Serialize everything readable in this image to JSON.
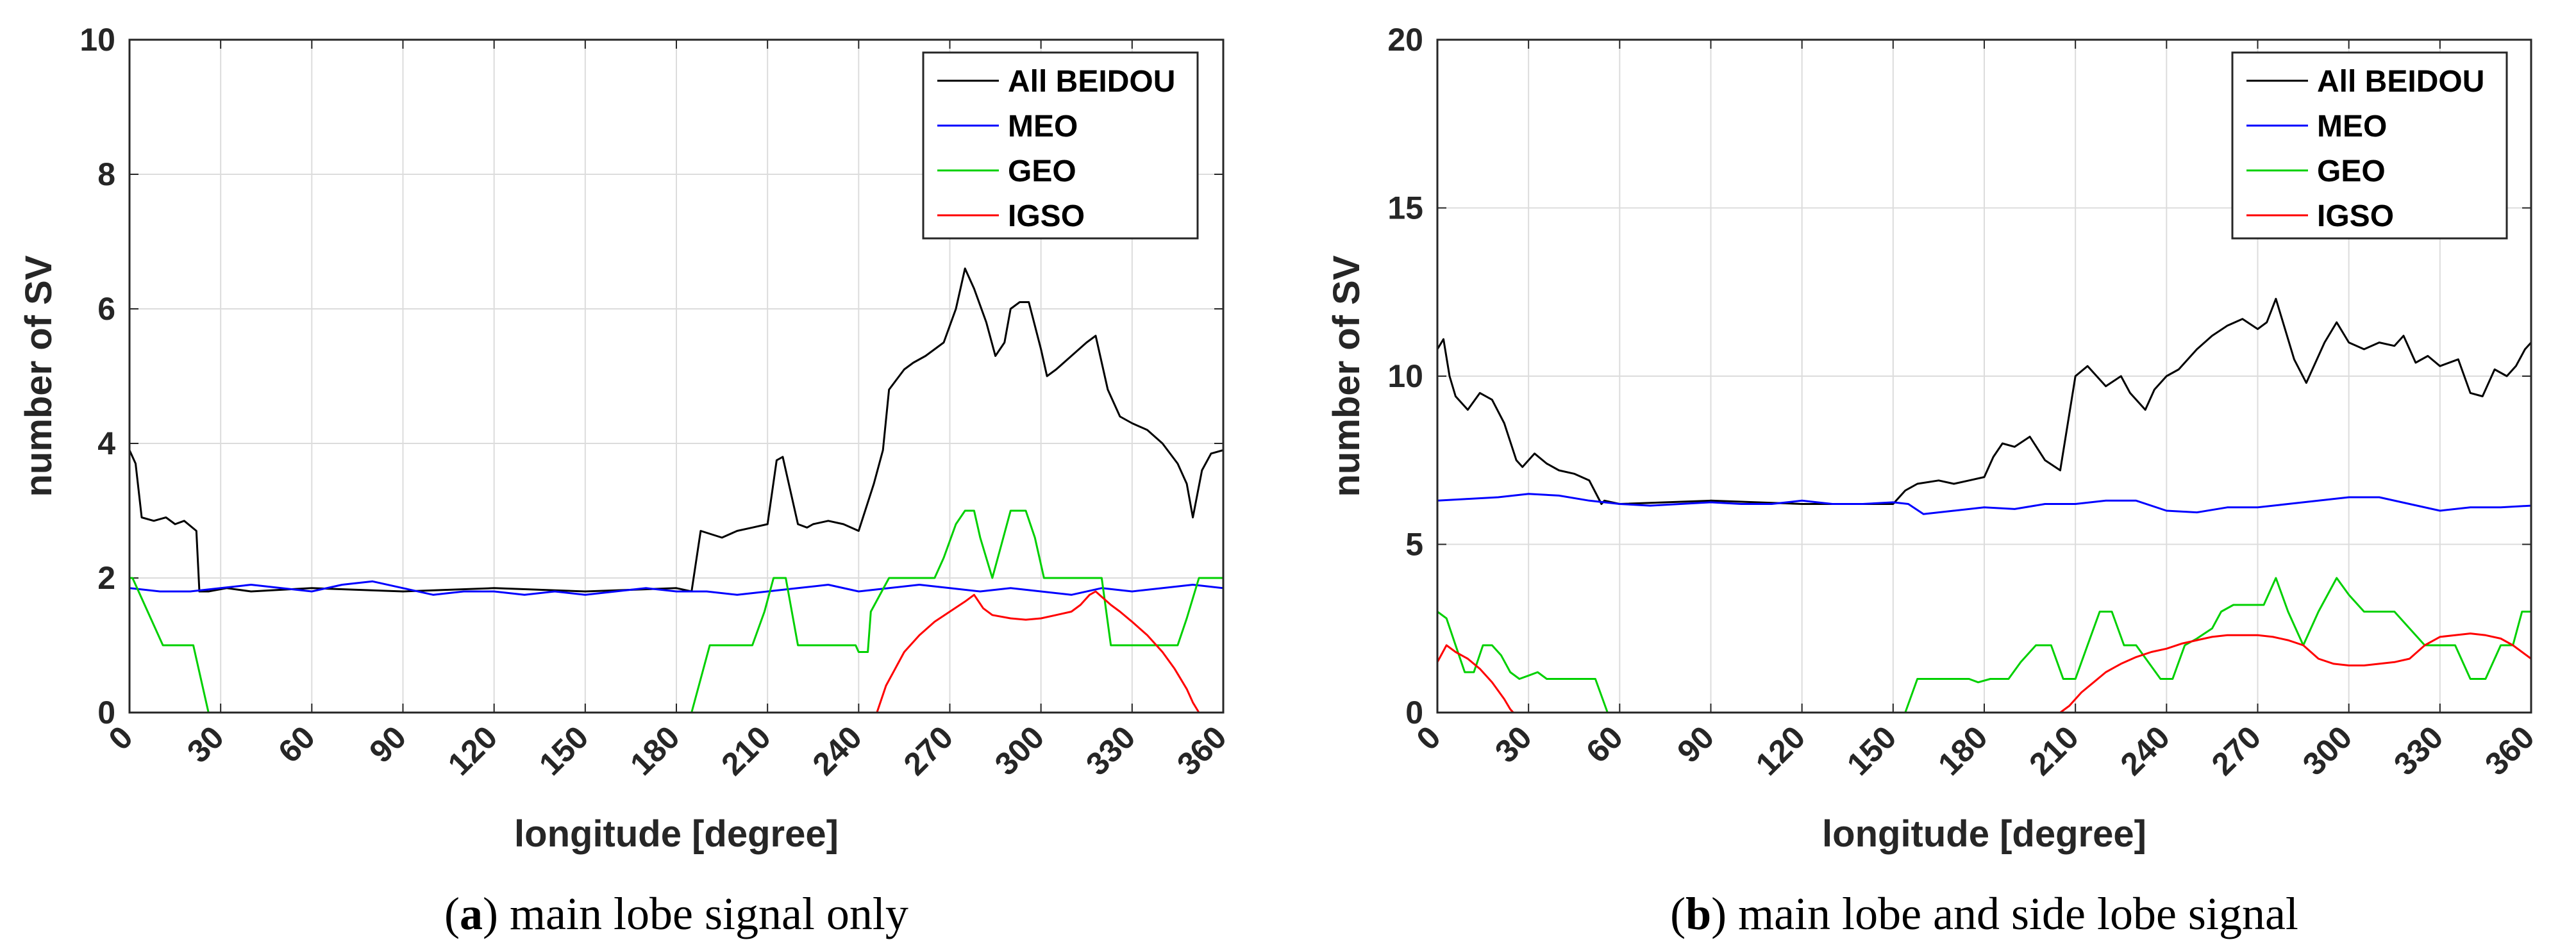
{
  "chart_data": [
    {
      "type": "line",
      "caption": {
        "letter": "a",
        "text": "main lobe signal only"
      },
      "xlabel": "longitude [degree]",
      "ylabel": "number of SV",
      "xlim": [
        0,
        360
      ],
      "ylim": [
        0,
        10
      ],
      "xticks": [
        0,
        30,
        60,
        90,
        120,
        150,
        180,
        210,
        240,
        270,
        300,
        330,
        360
      ],
      "yticks": [
        0,
        2,
        4,
        6,
        8,
        10
      ],
      "grid": true,
      "legend_position": "top-right",
      "series": [
        {
          "name": "All BEIDOU",
          "color": "#000000",
          "x": [
            0,
            2,
            4,
            8,
            12,
            15,
            18,
            22,
            23,
            26,
            32,
            40,
            60,
            90,
            120,
            150,
            180,
            185,
            188,
            195,
            200,
            205,
            210,
            213,
            215,
            220,
            223,
            225,
            230,
            235,
            240,
            245,
            248,
            250,
            255,
            258,
            262,
            265,
            268,
            272,
            275,
            278,
            282,
            285,
            288,
            290,
            293,
            296,
            300,
            302,
            305,
            310,
            315,
            318,
            322,
            326,
            330,
            335,
            340,
            345,
            348,
            350,
            353,
            356,
            360
          ],
          "y": [
            3.9,
            3.7,
            2.9,
            2.85,
            2.9,
            2.8,
            2.85,
            2.7,
            1.8,
            1.8,
            1.85,
            1.8,
            1.85,
            1.8,
            1.85,
            1.8,
            1.85,
            1.8,
            2.7,
            2.6,
            2.7,
            2.75,
            2.8,
            3.75,
            3.8,
            2.8,
            2.75,
            2.8,
            2.85,
            2.8,
            2.7,
            3.4,
            3.9,
            4.8,
            5.1,
            5.2,
            5.3,
            5.4,
            5.5,
            6.0,
            6.6,
            6.3,
            5.8,
            5.3,
            5.5,
            6.0,
            6.1,
            6.1,
            5.4,
            5.0,
            5.1,
            5.3,
            5.5,
            5.6,
            4.8,
            4.4,
            4.3,
            4.2,
            4.0,
            3.7,
            3.4,
            2.9,
            3.6,
            3.85,
            3.9
          ]
        },
        {
          "name": "MEO",
          "color": "#0000ff",
          "x": [
            0,
            10,
            20,
            30,
            40,
            50,
            60,
            70,
            80,
            90,
            100,
            110,
            120,
            130,
            140,
            150,
            160,
            170,
            180,
            190,
            200,
            210,
            220,
            230,
            240,
            250,
            260,
            270,
            280,
            290,
            300,
            310,
            320,
            330,
            340,
            350,
            360
          ],
          "y": [
            1.85,
            1.8,
            1.8,
            1.85,
            1.9,
            1.85,
            1.8,
            1.9,
            1.95,
            1.85,
            1.75,
            1.8,
            1.8,
            1.75,
            1.8,
            1.75,
            1.8,
            1.85,
            1.8,
            1.8,
            1.75,
            1.8,
            1.85,
            1.9,
            1.8,
            1.85,
            1.9,
            1.85,
            1.8,
            1.85,
            1.8,
            1.75,
            1.85,
            1.8,
            1.85,
            1.9,
            1.85
          ]
        },
        {
          "name": "GEO",
          "color": "#00d000",
          "x": [
            0,
            1,
            6,
            11,
            21,
            26,
            185,
            191,
            205,
            209,
            212,
            216,
            220,
            239,
            240,
            243,
            244,
            250,
            257,
            265,
            268,
            272,
            275,
            278,
            280,
            284,
            287,
            290,
            295,
            298,
            301,
            304,
            320,
            323,
            345,
            348,
            352,
            360
          ],
          "y": [
            2,
            2,
            1.5,
            1,
            1,
            0,
            0,
            1,
            1,
            1.5,
            2,
            2,
            1,
            1,
            0.9,
            0.9,
            1.5,
            2,
            2,
            2,
            2.3,
            2.8,
            3,
            3,
            2.6,
            2,
            2.5,
            3,
            3,
            2.6,
            2,
            2,
            2,
            1,
            1,
            1.4,
            2,
            2
          ]
        },
        {
          "name": "IGSO",
          "color": "#ff0000",
          "x": [
            0,
            50,
            100,
            150,
            200,
            246,
            249,
            252,
            255,
            260,
            265,
            270,
            275,
            278,
            281,
            284,
            290,
            295,
            300,
            305,
            310,
            313,
            316,
            318,
            320,
            323,
            326,
            330,
            335,
            340,
            344,
            348,
            350,
            352,
            354,
            360
          ],
          "y": [
            0,
            0,
            0,
            0,
            0,
            0,
            0.4,
            0.65,
            0.9,
            1.15,
            1.35,
            1.5,
            1.65,
            1.75,
            1.55,
            1.45,
            1.4,
            1.38,
            1.4,
            1.45,
            1.5,
            1.6,
            1.75,
            1.8,
            1.72,
            1.6,
            1.5,
            1.35,
            1.15,
            0.9,
            0.65,
            0.35,
            0.15,
            0,
            0,
            0
          ]
        }
      ]
    },
    {
      "type": "line",
      "caption": {
        "letter": "b",
        "text": "main lobe and side lobe signal"
      },
      "xlabel": "longitude [degree]",
      "ylabel": "number of SV",
      "xlim": [
        0,
        360
      ],
      "ylim": [
        0,
        20
      ],
      "xticks": [
        0,
        30,
        60,
        90,
        120,
        150,
        180,
        210,
        240,
        270,
        300,
        330,
        360
      ],
      "yticks": [
        0,
        5,
        10,
        15,
        20
      ],
      "grid": true,
      "legend_position": "top-right",
      "series": [
        {
          "name": "All BEIDOU",
          "color": "#000000",
          "x": [
            0,
            2,
            4,
            6,
            10,
            14,
            18,
            22,
            26,
            28,
            32,
            36,
            40,
            45,
            50,
            54,
            55,
            60,
            90,
            120,
            150,
            154,
            158,
            165,
            170,
            175,
            180,
            183,
            186,
            190,
            195,
            200,
            205,
            210,
            214,
            220,
            225,
            228,
            233,
            236,
            240,
            244,
            250,
            255,
            260,
            265,
            270,
            273,
            276,
            282,
            286,
            292,
            296,
            300,
            305,
            310,
            315,
            318,
            322,
            326,
            330,
            336,
            340,
            344,
            348,
            352,
            355,
            358,
            360
          ],
          "y": [
            10.8,
            11.1,
            10.0,
            9.4,
            9.0,
            9.5,
            9.3,
            8.6,
            7.5,
            7.3,
            7.7,
            7.4,
            7.2,
            7.1,
            6.9,
            6.2,
            6.3,
            6.2,
            6.3,
            6.2,
            6.2,
            6.6,
            6.8,
            6.9,
            6.8,
            6.9,
            7.0,
            7.6,
            8.0,
            7.9,
            8.2,
            7.5,
            7.2,
            10.0,
            10.3,
            9.7,
            10.0,
            9.5,
            9.0,
            9.6,
            10.0,
            10.2,
            10.8,
            11.2,
            11.5,
            11.7,
            11.4,
            11.6,
            12.3,
            10.5,
            9.8,
            11.0,
            11.6,
            11.0,
            10.8,
            11.0,
            10.9,
            11.2,
            10.4,
            10.6,
            10.3,
            10.5,
            9.5,
            9.4,
            10.2,
            10.0,
            10.3,
            10.8,
            11.0
          ]
        },
        {
          "name": "MEO",
          "color": "#0000ff",
          "x": [
            0,
            10,
            20,
            30,
            40,
            50,
            60,
            70,
            80,
            90,
            100,
            110,
            120,
            130,
            140,
            150,
            155,
            160,
            170,
            180,
            190,
            200,
            210,
            220,
            230,
            240,
            250,
            260,
            270,
            280,
            290,
            300,
            310,
            320,
            330,
            340,
            350,
            360
          ],
          "y": [
            6.3,
            6.35,
            6.4,
            6.5,
            6.45,
            6.3,
            6.2,
            6.15,
            6.2,
            6.25,
            6.2,
            6.2,
            6.3,
            6.2,
            6.2,
            6.25,
            6.2,
            5.9,
            6.0,
            6.1,
            6.05,
            6.2,
            6.2,
            6.3,
            6.3,
            6.0,
            5.95,
            6.1,
            6.1,
            6.2,
            6.3,
            6.4,
            6.4,
            6.2,
            6.0,
            6.1,
            6.1,
            6.15
          ]
        },
        {
          "name": "GEO",
          "color": "#00d000",
          "x": [
            0,
            3,
            6,
            9,
            12,
            15,
            18,
            21,
            24,
            27,
            30,
            33,
            36,
            52,
            56,
            154,
            158,
            175,
            178,
            182,
            188,
            192,
            197,
            202,
            206,
            210,
            214,
            218,
            222,
            226,
            230,
            234,
            238,
            242,
            246,
            250,
            255,
            258,
            262,
            266,
            272,
            276,
            280,
            285,
            290,
            296,
            300,
            305,
            315,
            320,
            325,
            335,
            340,
            345,
            350,
            354,
            357,
            360
          ],
          "y": [
            3,
            2.8,
            2,
            1.2,
            1.2,
            2,
            2,
            1.7,
            1.2,
            1,
            1.1,
            1.2,
            1,
            1,
            0,
            0,
            1,
            1,
            0.9,
            1,
            1,
            1.5,
            2,
            2,
            1,
            1,
            2,
            3,
            3,
            2,
            2,
            1.5,
            1,
            1,
            2,
            2.2,
            2.5,
            3,
            3.2,
            3.2,
            3.2,
            4,
            3,
            2,
            3,
            4,
            3.5,
            3,
            3,
            2.5,
            2,
            2,
            1,
            1,
            2,
            2,
            3,
            3
          ]
        },
        {
          "name": "IGSO",
          "color": "#ff0000",
          "x": [
            0,
            3,
            6,
            10,
            14,
            18,
            22,
            24,
            25,
            60,
            100,
            150,
            200,
            205,
            208,
            212,
            216,
            220,
            225,
            230,
            235,
            240,
            245,
            250,
            255,
            260,
            265,
            270,
            275,
            280,
            285,
            290,
            295,
            300,
            305,
            310,
            315,
            320,
            325,
            330,
            335,
            340,
            345,
            350,
            354,
            357,
            360
          ],
          "y": [
            1.5,
            2,
            1.8,
            1.6,
            1.3,
            0.9,
            0.4,
            0.1,
            0,
            0,
            0,
            0,
            0,
            0,
            0.2,
            0.6,
            0.9,
            1.2,
            1.45,
            1.65,
            1.8,
            1.9,
            2.05,
            2.15,
            2.25,
            2.3,
            2.3,
            2.3,
            2.25,
            2.15,
            2.0,
            1.6,
            1.45,
            1.4,
            1.4,
            1.45,
            1.5,
            1.6,
            2.0,
            2.25,
            2.3,
            2.35,
            2.3,
            2.2,
            2.0,
            1.8,
            1.6
          ]
        }
      ]
    }
  ]
}
